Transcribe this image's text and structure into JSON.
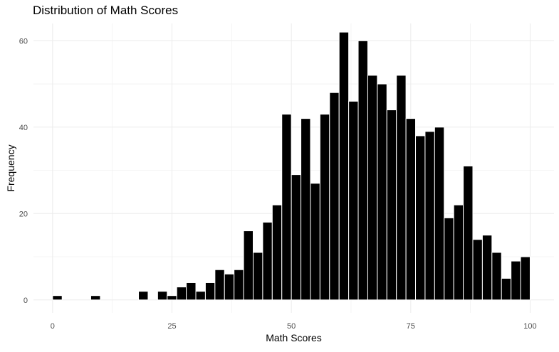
{
  "chart_data": {
    "type": "bar",
    "title": "Distribution of Math Scores",
    "xlabel": "Math Scores",
    "ylabel": "Frequency",
    "xlim": [
      -4,
      105
    ],
    "ylim": [
      -3,
      64
    ],
    "grid": true,
    "x_ticks": [
      0,
      25,
      50,
      75,
      100
    ],
    "y_ticks": [
      0,
      20,
      40,
      60
    ],
    "bin_width": 2,
    "bin_starts": [
      0,
      8,
      18,
      22,
      24,
      26,
      28,
      30,
      32,
      34,
      36,
      38,
      40,
      42,
      44,
      46,
      48,
      50,
      52,
      54,
      56,
      58,
      60,
      62,
      64,
      66,
      68,
      70,
      72,
      74,
      76,
      78,
      80,
      82,
      84,
      86,
      88,
      90,
      92,
      94,
      96,
      98
    ],
    "values": [
      1,
      1,
      2,
      2,
      1,
      3,
      4,
      2,
      4,
      7,
      6,
      7,
      16,
      11,
      18,
      22,
      43,
      29,
      42,
      27,
      43,
      48,
      62,
      46,
      60,
      52,
      50,
      44,
      52,
      42,
      38,
      39,
      40,
      19,
      22,
      31,
      14,
      15,
      11,
      5,
      9,
      10
    ]
  }
}
